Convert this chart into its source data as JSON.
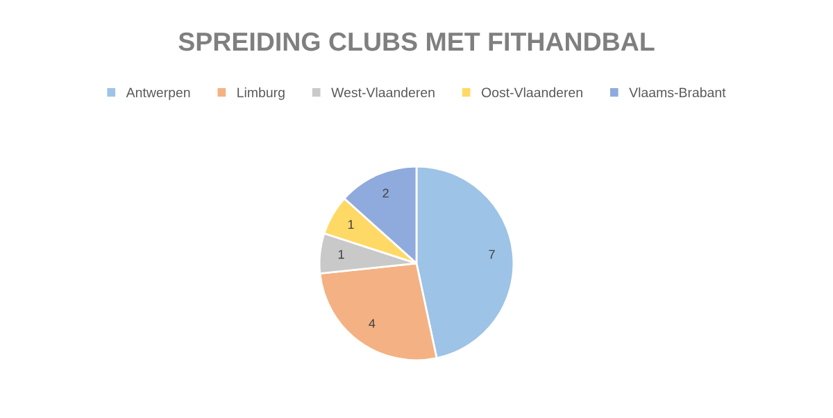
{
  "chart_data": {
    "type": "pie",
    "title": "SPREIDING CLUBS MET FITHANDBAL",
    "categories": [
      "Antwerpen",
      "Limburg",
      "West-Vlaanderen",
      "Oost-Vlaanderen",
      "Vlaams-Brabant"
    ],
    "values": [
      7,
      4,
      1,
      1,
      2
    ],
    "colors": [
      "#9dc3e6",
      "#f4b183",
      "#c9c9c9",
      "#ffd966",
      "#8faadc"
    ],
    "data_labels": true,
    "legend": "top"
  }
}
